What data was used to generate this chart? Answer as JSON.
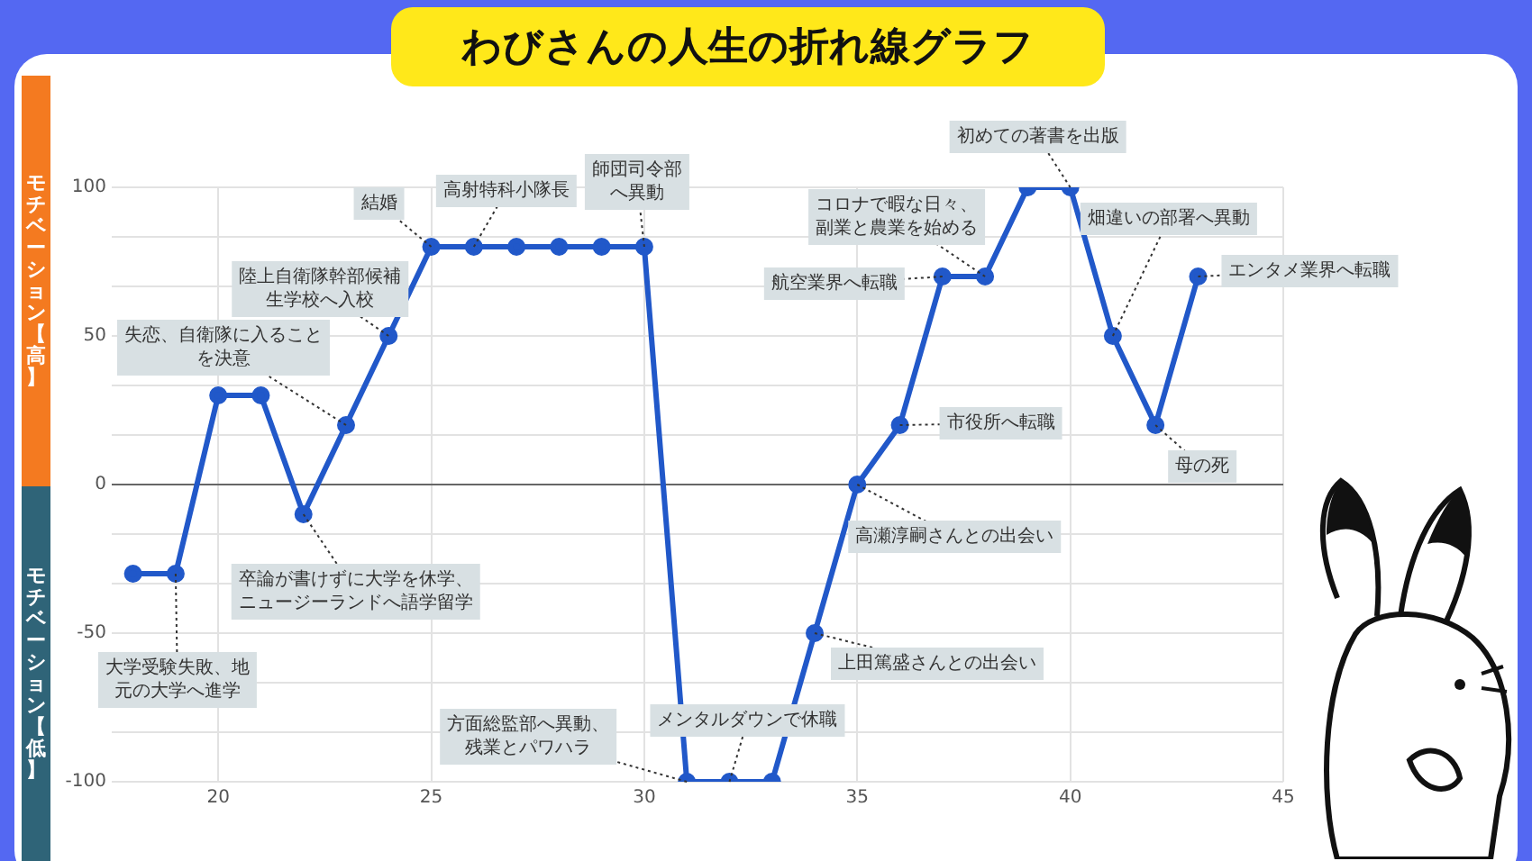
{
  "chart_data": {
    "type": "line",
    "title": "わびさんの人生の折れ線グラフ",
    "ylabel": "モチベーション【高】",
    "x": [
      18,
      19,
      20,
      21,
      22,
      23,
      24,
      25,
      26,
      27,
      28,
      29,
      30,
      31,
      32,
      33,
      34,
      35,
      36,
      37,
      38,
      39,
      40,
      41,
      42,
      43
    ],
    "series": [
      {
        "color": "#2158c9",
        "values": [
          -30,
          -30,
          30,
          30,
          -10,
          20,
          50,
          80,
          80,
          80,
          80,
          80,
          80,
          -100,
          -100,
          -100,
          -50,
          0,
          20,
          70,
          70,
          100,
          100,
          50,
          20,
          70
        ]
      }
    ],
    "xlim": [
      17.5,
      45
    ],
    "xticks": [
      20,
      25,
      30,
      35,
      40,
      45
    ],
    "ylim": [
      -100,
      100
    ],
    "yticks": [
      -100,
      {
        "value": -83.33,
        "label": null
      },
      {
        "value": -66.67,
        "label": null
      },
      -50,
      {
        "value": -33.33,
        "label": null
      },
      {
        "value": -16.67,
        "label": null
      },
      0,
      {
        "value": 16.67,
        "label": null
      },
      {
        "value": 33.33,
        "label": null
      },
      50,
      {
        "value": 66.67,
        "label": null
      },
      {
        "value": 83.33,
        "label": null
      },
      100
    ],
    "grid": true,
    "marker": "circle",
    "line_style": "solid",
    "annotations": [
      {
        "text": "大学受験失敗、地元の大学へ進学",
        "x": 19,
        "y": -30
      },
      {
        "text": "卒論が書けずに大学を休学、ニュージーランドへ語学留学",
        "x": 22,
        "y": -10
      },
      {
        "text": "失恋、自衛隊に入ることを決意",
        "x": 23,
        "y": 20
      },
      {
        "text": "陸上自衛隊幹部候補生学校へ入校",
        "x": 24,
        "y": 50
      },
      {
        "text": "結婚",
        "x": 25,
        "y": 80
      },
      {
        "text": "高射特科小隊長",
        "x": 26,
        "y": 80
      },
      {
        "text": "師団司令部へ異動",
        "x": 30,
        "y": 80
      },
      {
        "text": "方面総監部へ異動、残業とパワハラ",
        "x": 31,
        "y": -100
      },
      {
        "text": "メンタルダウンで休職",
        "x": 32,
        "y": -100
      },
      {
        "text": "上田篤盛さんとの出会い",
        "x": 34,
        "y": -50
      },
      {
        "text": "高瀬淳嗣さんとの出会い",
        "x": 35,
        "y": 0
      },
      {
        "text": "市役所へ転職",
        "x": 36,
        "y": 20
      },
      {
        "text": "航空業界へ転職",
        "x": 37,
        "y": 70
      },
      {
        "text": "コロナで暇な日々、副業と農業を始める",
        "x": 38,
        "y": 70
      },
      {
        "text": "初めての著書を出版",
        "x": 40,
        "y": 100
      },
      {
        "text": "畑違いの部署へ異動",
        "x": 41,
        "y": 50
      },
      {
        "text": "母の死",
        "x": 42,
        "y": 20
      },
      {
        "text": "エンタメ業界へ転職",
        "x": 43,
        "y": 70
      },
      "モチベーション【低】"
    ]
  }
}
